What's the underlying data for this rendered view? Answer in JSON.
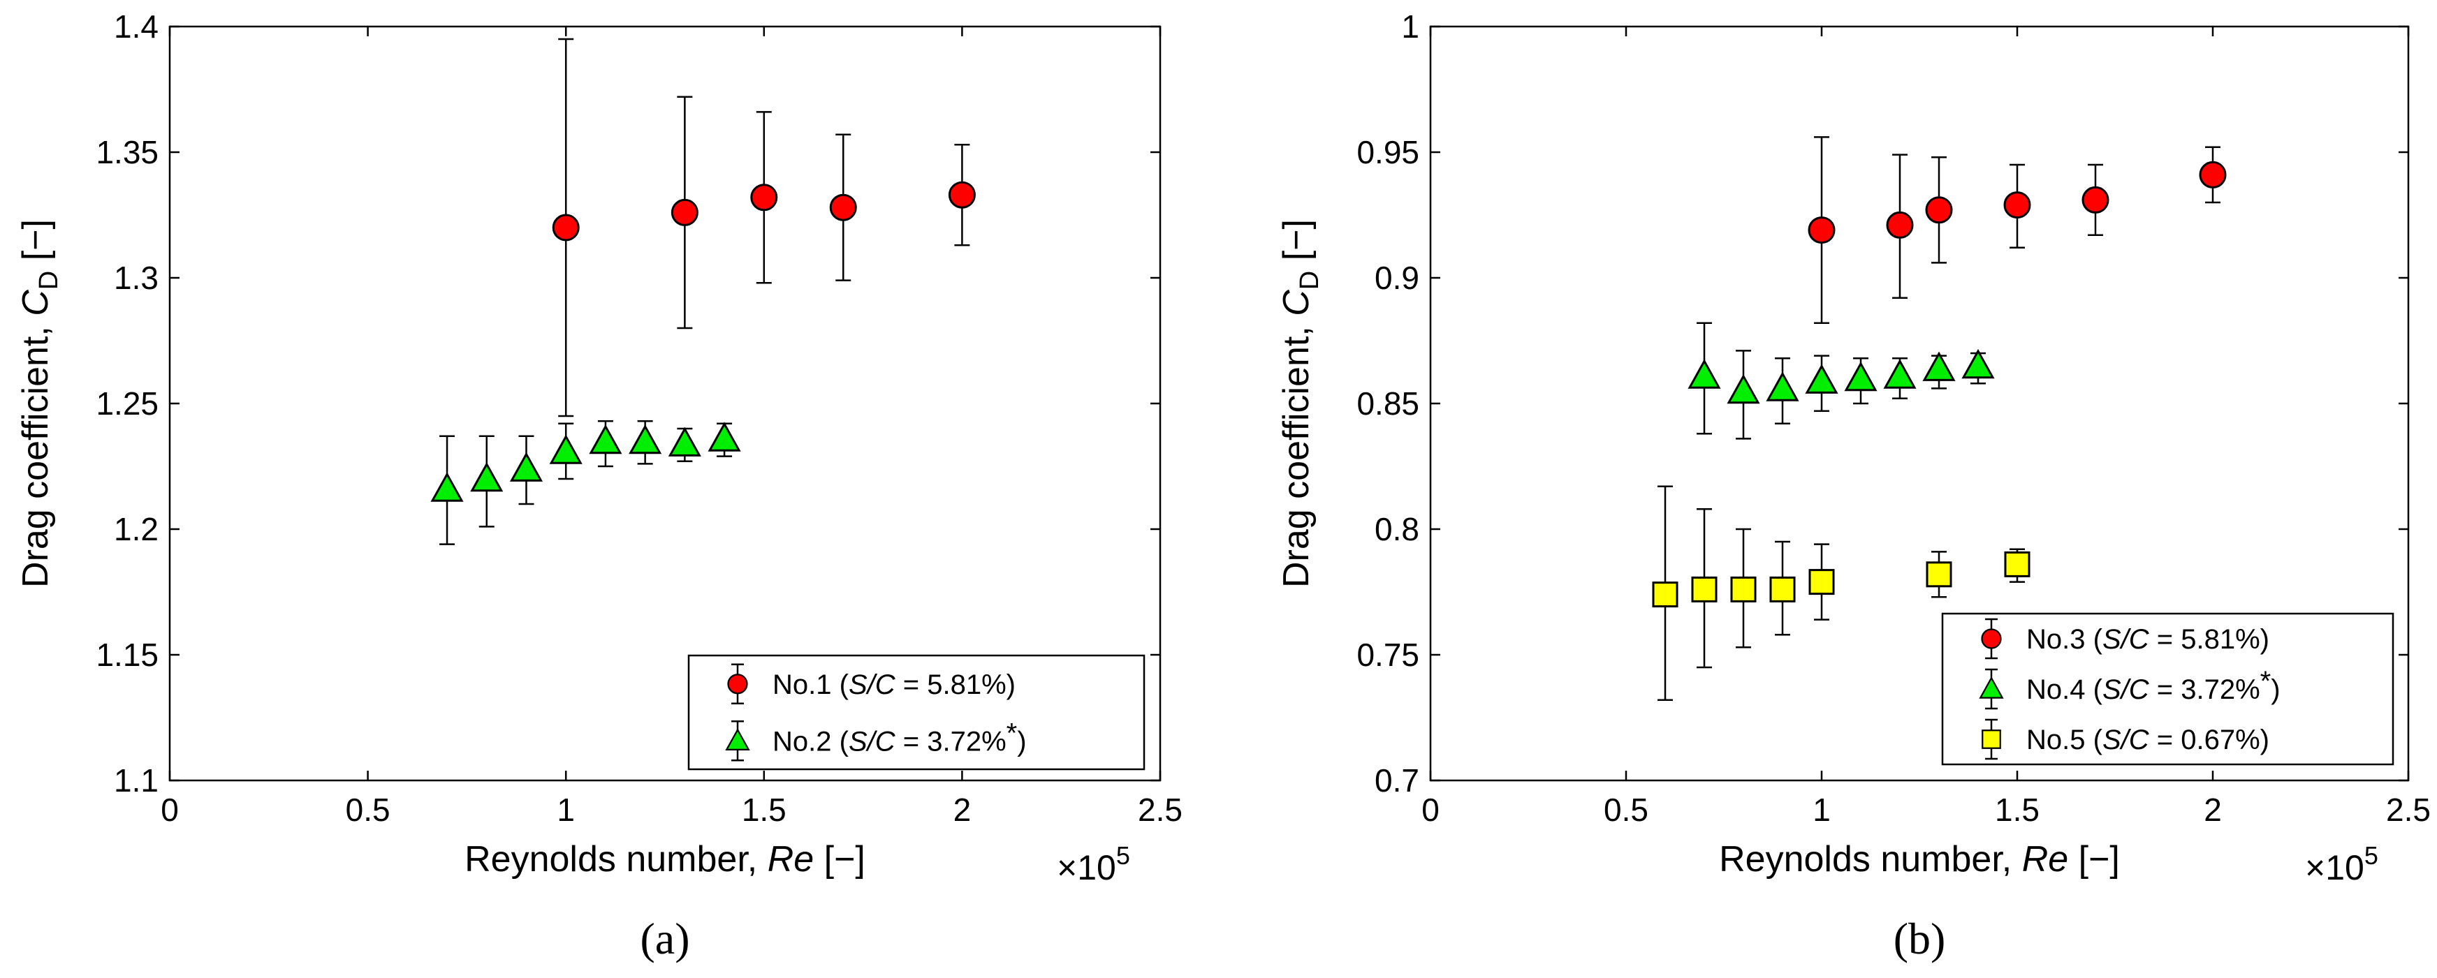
{
  "chart_data": [
    {
      "type": "scatter",
      "caption": "(a)",
      "xlabel_prefix": "Reynolds number, ",
      "xlabel_var": "Re",
      "xlabel_unit": " [−]",
      "ylabel_prefix": "Drag coefficient, ",
      "ylabel_var": "C",
      "ylabel_sub": "D",
      "ylabel_unit": " [−]",
      "xlim": [
        0,
        2.5
      ],
      "ylim": [
        1.1,
        1.4
      ],
      "xticks": [
        0,
        0.5,
        1,
        1.5,
        2,
        2.5
      ],
      "xtick_labels": [
        "0",
        "0.5",
        "1",
        "1.5",
        "2",
        "2.5"
      ],
      "yticks": [
        1.1,
        1.15,
        1.2,
        1.25,
        1.3,
        1.35,
        1.4
      ],
      "ytick_labels": [
        "1.1",
        "1.15",
        "1.2",
        "1.25",
        "1.3",
        "1.35",
        "1.4"
      ],
      "x_multiplier_base": "×10",
      "x_multiplier_exp": "5",
      "legend_position": "bottom-right",
      "series": [
        {
          "name": "No.1",
          "legend_prefix": "No.1 (",
          "legend_var": "S/C",
          "legend_value": " = 5.81%)",
          "legend_star": "",
          "marker": "circle",
          "color": "#ff0000",
          "points": [
            {
              "x": 1.0,
              "y": 1.32,
              "lo": 1.245,
              "hi": 1.395
            },
            {
              "x": 1.3,
              "y": 1.326,
              "lo": 1.28,
              "hi": 1.372
            },
            {
              "x": 1.5,
              "y": 1.332,
              "lo": 1.298,
              "hi": 1.366
            },
            {
              "x": 1.7,
              "y": 1.328,
              "lo": 1.299,
              "hi": 1.357
            },
            {
              "x": 2.0,
              "y": 1.333,
              "lo": 1.313,
              "hi": 1.353
            }
          ]
        },
        {
          "name": "No.2",
          "legend_prefix": "No.2 (",
          "legend_var": "S/C",
          "legend_value": " = 3.72%",
          "legend_star": "*",
          "legend_close": ")",
          "marker": "triangle",
          "color": "#00ee00",
          "points": [
            {
              "x": 0.7,
              "y": 1.216,
              "lo": 1.194,
              "hi": 1.237
            },
            {
              "x": 0.8,
              "y": 1.22,
              "lo": 1.201,
              "hi": 1.237
            },
            {
              "x": 0.9,
              "y": 1.224,
              "lo": 1.21,
              "hi": 1.237
            },
            {
              "x": 1.0,
              "y": 1.231,
              "lo": 1.22,
              "hi": 1.242
            },
            {
              "x": 1.1,
              "y": 1.235,
              "lo": 1.225,
              "hi": 1.243
            },
            {
              "x": 1.2,
              "y": 1.235,
              "lo": 1.226,
              "hi": 1.243
            },
            {
              "x": 1.3,
              "y": 1.234,
              "lo": 1.227,
              "hi": 1.24
            },
            {
              "x": 1.4,
              "y": 1.236,
              "lo": 1.229,
              "hi": 1.242
            }
          ]
        }
      ]
    },
    {
      "type": "scatter",
      "caption": "(b)",
      "xlabel_prefix": "Reynolds number, ",
      "xlabel_var": "Re",
      "xlabel_unit": " [−]",
      "ylabel_prefix": "Drag coefficient, ",
      "ylabel_var": "C",
      "ylabel_sub": "D",
      "ylabel_unit": " [−]",
      "xlim": [
        0,
        2.5
      ],
      "ylim": [
        0.7,
        1.0
      ],
      "xticks": [
        0,
        0.5,
        1,
        1.5,
        2,
        2.5
      ],
      "xtick_labels": [
        "0",
        "0.5",
        "1",
        "1.5",
        "2",
        "2.5"
      ],
      "yticks": [
        0.7,
        0.75,
        0.8,
        0.85,
        0.9,
        0.95,
        1.0
      ],
      "ytick_labels": [
        "0.7",
        "0.75",
        "0.8",
        "0.85",
        "0.9",
        "0.95",
        "1"
      ],
      "x_multiplier_base": "×10",
      "x_multiplier_exp": "5",
      "legend_position": "bottom-right",
      "series": [
        {
          "name": "No.3",
          "legend_prefix": "No.3 (",
          "legend_var": "S/C",
          "legend_value": " = 5.81%)",
          "legend_star": "",
          "marker": "circle",
          "color": "#ff0000",
          "points": [
            {
              "x": 1.0,
              "y": 0.919,
              "lo": 0.882,
              "hi": 0.956
            },
            {
              "x": 1.2,
              "y": 0.921,
              "lo": 0.892,
              "hi": 0.949
            },
            {
              "x": 1.3,
              "y": 0.927,
              "lo": 0.906,
              "hi": 0.948
            },
            {
              "x": 1.5,
              "y": 0.929,
              "lo": 0.912,
              "hi": 0.945
            },
            {
              "x": 1.7,
              "y": 0.931,
              "lo": 0.917,
              "hi": 0.945
            },
            {
              "x": 2.0,
              "y": 0.941,
              "lo": 0.93,
              "hi": 0.952
            }
          ]
        },
        {
          "name": "No.4",
          "legend_prefix": "No.4 (",
          "legend_var": "S/C",
          "legend_value": " = 3.72%",
          "legend_star": "*",
          "legend_close": ")",
          "marker": "triangle",
          "color": "#00ee00",
          "points": [
            {
              "x": 0.7,
              "y": 0.861,
              "lo": 0.838,
              "hi": 0.882
            },
            {
              "x": 0.8,
              "y": 0.855,
              "lo": 0.836,
              "hi": 0.871
            },
            {
              "x": 0.9,
              "y": 0.856,
              "lo": 0.842,
              "hi": 0.868
            },
            {
              "x": 1.0,
              "y": 0.859,
              "lo": 0.847,
              "hi": 0.869
            },
            {
              "x": 1.1,
              "y": 0.86,
              "lo": 0.85,
              "hi": 0.868
            },
            {
              "x": 1.2,
              "y": 0.861,
              "lo": 0.852,
              "hi": 0.868
            },
            {
              "x": 1.3,
              "y": 0.864,
              "lo": 0.856,
              "hi": 0.869
            },
            {
              "x": 1.4,
              "y": 0.865,
              "lo": 0.858,
              "hi": 0.87
            }
          ]
        },
        {
          "name": "No.5",
          "legend_prefix": "No.5 (",
          "legend_var": "S/C",
          "legend_value": " = 0.67%)",
          "legend_star": "",
          "marker": "square",
          "color": "#ffff00",
          "points": [
            {
              "x": 0.6,
              "y": 0.774,
              "lo": 0.732,
              "hi": 0.817
            },
            {
              "x": 0.7,
              "y": 0.776,
              "lo": 0.745,
              "hi": 0.808
            },
            {
              "x": 0.8,
              "y": 0.776,
              "lo": 0.753,
              "hi": 0.8
            },
            {
              "x": 0.9,
              "y": 0.776,
              "lo": 0.758,
              "hi": 0.795
            },
            {
              "x": 1.0,
              "y": 0.779,
              "lo": 0.764,
              "hi": 0.794
            },
            {
              "x": 1.3,
              "y": 0.782,
              "lo": 0.773,
              "hi": 0.791
            },
            {
              "x": 1.5,
              "y": 0.786,
              "lo": 0.779,
              "hi": 0.792
            }
          ]
        }
      ]
    }
  ]
}
